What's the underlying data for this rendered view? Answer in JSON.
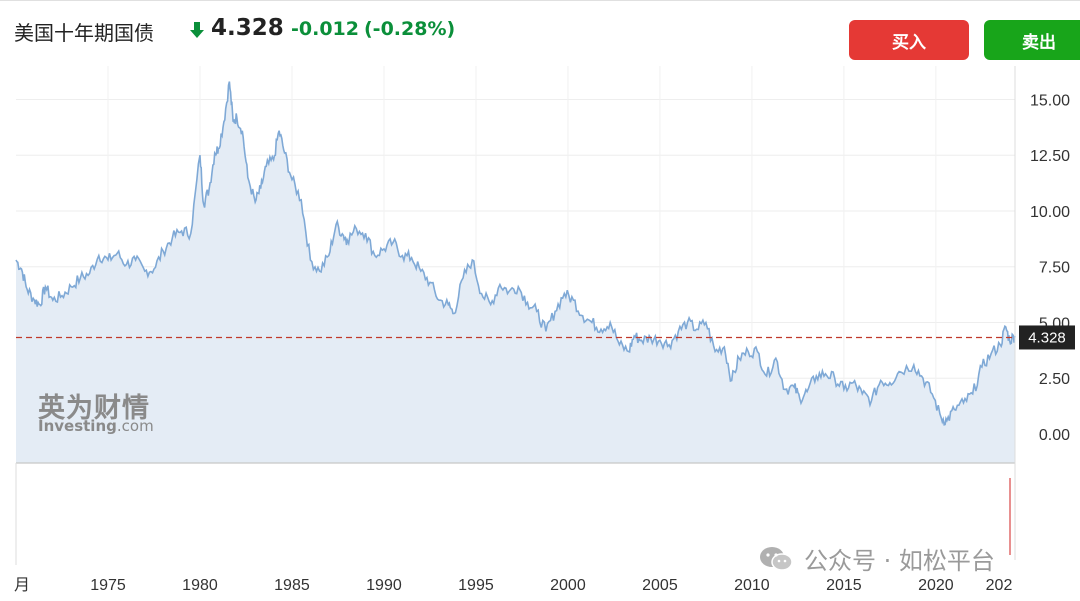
{
  "header": {
    "title": "美国十年期国债",
    "price": "4.328",
    "change": "-0.012",
    "change_pct": "(-0.28%)",
    "direction_icon": "arrow-down-icon",
    "buy_label": "买入",
    "sell_label": "卖出"
  },
  "colors": {
    "line": "#7fa9d6",
    "area_fill": "#e4ecf5",
    "down": "#0b8f3a",
    "buy_button": "#e53935",
    "sell_button": "#18a51a",
    "price_line": "#c0392b",
    "price_tag_bg": "#222222"
  },
  "watermark": {
    "cn": "英为财情",
    "en_main": "Investing",
    "en_suffix": ".com"
  },
  "footer_mark": {
    "icon": "wechat-icon",
    "text": "公众号 · 如松平台"
  },
  "chart_data": {
    "type": "area",
    "y_ticks": [
      "15.00",
      "12.50",
      "10.00",
      "7.50",
      "5.00",
      "2.50",
      "0.00"
    ],
    "y_tick_values": [
      15,
      12.5,
      10,
      7.5,
      5,
      2.5,
      0
    ],
    "x_ticks": [
      "月",
      "1975",
      "1980",
      "1985",
      "1990",
      "1995",
      "2000",
      "2005",
      "2010",
      "2015",
      "2020",
      "202"
    ],
    "current_value": 4.328,
    "current_label": "4.328",
    "ylim": [
      -1.3,
      16.5
    ],
    "xlim": [
      1970.0,
      2024.3
    ],
    "grid": true,
    "series": [
      {
        "x": [
          1970.0,
          1970.3,
          1970.6,
          1971.0,
          1971.3,
          1971.6,
          1972.0,
          1972.5,
          1973.0,
          1973.5,
          1974.0,
          1974.5,
          1975.0,
          1975.5,
          1976.0,
          1976.5,
          1977.0,
          1977.5,
          1978.0,
          1978.5,
          1979.0,
          1979.5,
          1980.0,
          1980.2,
          1980.5,
          1980.8,
          1981.0,
          1981.3,
          1981.6,
          1981.8,
          1982.0,
          1982.3,
          1982.6,
          1983.0,
          1983.3,
          1983.6,
          1984.0,
          1984.3,
          1984.6,
          1985.0,
          1985.5,
          1986.0,
          1986.5,
          1987.0,
          1987.4,
          1987.8,
          1988.0,
          1988.5,
          1989.0,
          1989.5,
          1990.0,
          1990.5,
          1991.0,
          1991.5,
          1992.0,
          1992.5,
          1993.0,
          1993.5,
          1993.8,
          1994.3,
          1994.8,
          1995.3,
          1995.8,
          1996.3,
          1996.8,
          1997.3,
          1997.8,
          1998.3,
          1998.8,
          1999.3,
          1999.8,
          2000.3,
          2000.8,
          2001.3,
          2001.8,
          2002.3,
          2002.8,
          2003.3,
          2003.6,
          2004.0,
          2004.5,
          2005.0,
          2005.5,
          2006.0,
          2006.5,
          2007.0,
          2007.5,
          2008.0,
          2008.5,
          2008.9,
          2009.3,
          2009.8,
          2010.3,
          2010.8,
          2011.3,
          2011.8,
          2012.3,
          2012.6,
          2013.0,
          2013.5,
          2014.0,
          2014.5,
          2015.0,
          2015.5,
          2016.0,
          2016.5,
          2017.0,
          2017.5,
          2018.0,
          2018.8,
          2019.3,
          2019.8,
          2020.3,
          2020.6,
          2021.0,
          2021.5,
          2022.0,
          2022.5,
          2023.0,
          2023.5,
          2023.8,
          2024.0,
          2024.3
        ],
        "y": [
          7.8,
          7.4,
          6.5,
          6.0,
          5.8,
          6.6,
          6.0,
          6.2,
          6.6,
          7.0,
          7.2,
          8.0,
          7.8,
          8.1,
          7.6,
          7.8,
          7.3,
          7.4,
          8.2,
          8.8,
          9.1,
          9.0,
          12.5,
          10.3,
          11.0,
          12.6,
          12.8,
          14.0,
          15.8,
          14.0,
          14.2,
          13.6,
          11.5,
          10.4,
          11.0,
          12.0,
          12.3,
          13.6,
          12.6,
          11.4,
          10.5,
          7.8,
          7.3,
          8.0,
          9.4,
          8.9,
          8.7,
          9.2,
          9.0,
          8.0,
          8.3,
          8.6,
          8.0,
          7.9,
          7.3,
          6.8,
          6.0,
          5.8,
          5.4,
          7.0,
          7.8,
          6.3,
          5.8,
          6.7,
          6.4,
          6.6,
          5.9,
          5.5,
          4.6,
          5.5,
          6.3,
          6.0,
          5.3,
          5.0,
          4.7,
          5.0,
          4.0,
          3.7,
          4.4,
          4.2,
          4.3,
          4.2,
          4.0,
          4.6,
          5.0,
          4.7,
          5.0,
          3.7,
          3.9,
          2.4,
          3.4,
          3.7,
          3.7,
          2.6,
          3.4,
          2.0,
          2.1,
          1.6,
          1.9,
          2.6,
          2.7,
          2.5,
          2.0,
          2.3,
          1.8,
          1.5,
          2.4,
          2.3,
          2.8,
          3.1,
          2.5,
          1.8,
          0.7,
          0.6,
          1.1,
          1.4,
          1.8,
          3.0,
          3.6,
          4.0,
          4.8,
          4.2,
          4.4
        ]
      }
    ]
  }
}
